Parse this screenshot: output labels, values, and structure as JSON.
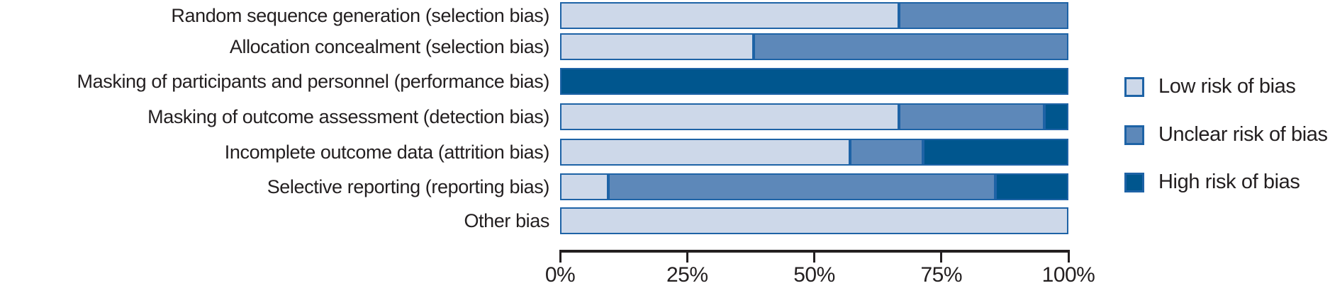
{
  "chart_data": {
    "type": "bar",
    "orientation": "horizontal",
    "stacked": true,
    "unit": "percent",
    "title": "",
    "xlabel": "",
    "ylabel": "",
    "xlim": [
      0,
      100
    ],
    "grid": false,
    "legend_position": "right",
    "categories": [
      "Random sequence generation (selection bias)",
      "Allocation concealment (selection bias)",
      "Masking of participants and personnel (performance bias)",
      "Masking of outcome assessment (detection bias)",
      "Incomplete outcome data (attrition bias)",
      "Selective reporting (reporting bias)",
      "Other bias"
    ],
    "series": [
      {
        "name": "Low risk of bias",
        "color": "#cdd8e9",
        "values": [
          66.7,
          38.1,
          0,
          66.7,
          57.1,
          9.5,
          100
        ]
      },
      {
        "name": "Unclear risk of bias",
        "color": "#5d88b9",
        "values": [
          33.3,
          61.9,
          0,
          28.6,
          14.3,
          76.2,
          0
        ]
      },
      {
        "name": "High risk of bias",
        "color": "#00568e",
        "values": [
          0,
          0,
          100,
          4.7,
          28.6,
          14.3,
          0
        ]
      }
    ],
    "x_ticks": [
      {
        "label": "0%",
        "value": 0
      },
      {
        "label": "25%",
        "value": 25
      },
      {
        "label": "50%",
        "value": 50
      },
      {
        "label": "75%",
        "value": 75
      },
      {
        "label": "100%",
        "value": 100
      }
    ],
    "colors": {
      "segment_border": "#1e63a6",
      "axis": "#231f20",
      "text": "#231f20",
      "background": "#ffffff"
    }
  }
}
